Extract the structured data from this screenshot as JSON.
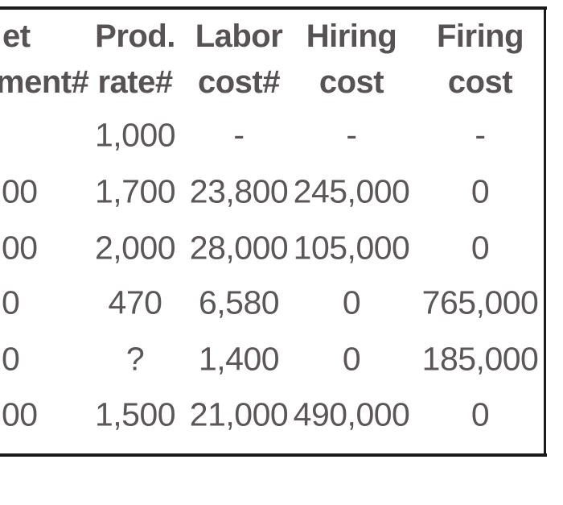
{
  "colors": {
    "text": "#5b5658",
    "header_text": "#575254",
    "border": "#1b1b1b",
    "background": "#ffffff"
  },
  "chart_data": {
    "type": "table",
    "cropped_left_edge": true,
    "header_rows": [
      [
        "et",
        "Prod.",
        "Labor",
        "Hiring",
        "Firing"
      ],
      [
        "ment#",
        "rate#",
        "cost#",
        "cost",
        "cost"
      ]
    ],
    "rows": [
      [
        "",
        "1,000",
        "-",
        "-",
        "-"
      ],
      [
        "00",
        "1,700",
        "23,800",
        "245,000",
        "0"
      ],
      [
        "00",
        "2,000",
        "28,000",
        "105,000",
        "0"
      ],
      [
        "0",
        "470",
        "6,580",
        "0",
        "765,000"
      ],
      [
        "0",
        "?",
        "1,400",
        "0",
        "185,000"
      ],
      [
        "00",
        "1,500",
        "21,000",
        "490,000",
        "0"
      ]
    ]
  }
}
